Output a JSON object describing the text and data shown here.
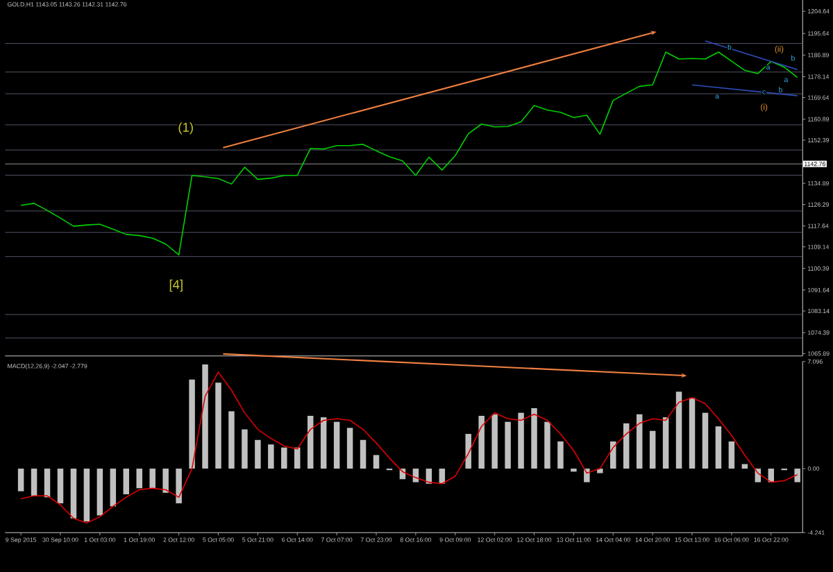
{
  "chart_data": [
    {
      "type": "line",
      "title": "GOLD,H1  1143.05 1143.26 1142.31 1142.76",
      "ylim": [
        1064.9,
        1209.2
      ],
      "categories": [
        null,
        null,
        null,
        null,
        null,
        null,
        null,
        null,
        null,
        null,
        null,
        null,
        null,
        null,
        null,
        null,
        null,
        null,
        null,
        null,
        null,
        null,
        null,
        null,
        null,
        null,
        null,
        null,
        null,
        null,
        null,
        null,
        null,
        null,
        null,
        null,
        null,
        null,
        null,
        null,
        null,
        null,
        null,
        null,
        null,
        null,
        null,
        null,
        null,
        null,
        null,
        null,
        null,
        null,
        null,
        null,
        null,
        null,
        null,
        null
      ],
      "yticks": [
        1204.64,
        1195.64,
        1186.89,
        1178.14,
        1169.64,
        1160.89,
        1152.39,
        1134.89,
        1126.29,
        1117.64,
        1109.14,
        1100.39,
        1091.64,
        1083.14,
        1074.39,
        1065.89
      ],
      "series": [
        {
          "color": "#00d000",
          "values": [
            1126.0,
            1126.8,
            1123.9,
            1120.8,
            1117.5,
            1118.0,
            1118.3,
            1116.3,
            1114.2,
            1113.7,
            1112.7,
            1110.3,
            1105.9,
            1138.1,
            1137.5,
            1136.8,
            1134.6,
            1141.4,
            1136.5,
            1137.0,
            1138.1,
            1138.1,
            1149.0,
            1148.8,
            1150.2,
            1150.2,
            1150.7,
            1148.1,
            1145.7,
            1144.0,
            1138.1,
            1145.5,
            1140.3,
            1146.1,
            1155.0,
            1158.9,
            1157.8,
            1157.9,
            1159.8,
            1166.4,
            1164.6,
            1163.7,
            1161.6,
            1162.5,
            1154.8,
            1168.5,
            1171.4,
            1174.2,
            1174.8,
            1188.1,
            1185.3,
            1185.5,
            1185.3,
            1188.1,
            1184.4,
            1180.7,
            1179.4,
            1184.3,
            1182.0,
            1177.8
          ]
        },
        {
          "color": "#3050c0",
          "values": [
            null,
            null,
            null,
            null,
            null,
            null,
            null,
            null,
            null,
            null,
            null,
            null,
            null,
            null,
            null,
            null,
            null,
            null,
            null,
            null,
            null,
            null,
            null,
            null,
            null,
            null,
            null,
            null,
            null,
            null,
            null,
            null,
            null,
            null,
            null,
            null,
            null,
            null,
            null,
            null,
            null,
            null,
            null,
            null,
            null,
            null,
            null,
            null,
            null,
            null,
            null,
            null,
            1192.6,
            null,
            null,
            null,
            null,
            null,
            null,
            1181.0
          ]
        },
        {
          "color": "#3050c0",
          "values": [
            null,
            null,
            null,
            null,
            null,
            null,
            null,
            null,
            null,
            null,
            null,
            null,
            null,
            null,
            null,
            null,
            null,
            null,
            null,
            null,
            null,
            null,
            null,
            null,
            null,
            null,
            null,
            null,
            null,
            null,
            null,
            null,
            null,
            null,
            null,
            null,
            null,
            null,
            null,
            null,
            null,
            null,
            null,
            null,
            null,
            null,
            null,
            null,
            null,
            null,
            null,
            1174.8,
            null,
            null,
            null,
            null,
            null,
            null,
            null,
            1170.4
          ]
        }
      ],
      "ref_lines": [
        {
          "axis": "y",
          "value": 1191.6,
          "color": "#5a5a6e"
        },
        {
          "axis": "y",
          "value": 1180.0,
          "color": "#5a5a6e"
        },
        {
          "axis": "y",
          "value": 1171.2,
          "color": "#5a5a6e"
        },
        {
          "axis": "y",
          "value": 1158.6,
          "color": "#5a5a6e"
        },
        {
          "axis": "y",
          "value": 1148.4,
          "color": "#5a5a6e"
        },
        {
          "axis": "y",
          "value": 1138.2,
          "color": "#5a5a6e"
        },
        {
          "axis": "y",
          "value": 1123.7,
          "color": "#5a5a6e"
        },
        {
          "axis": "y",
          "value": 1115.0,
          "color": "#5a5a6e"
        },
        {
          "axis": "y",
          "value": 1105.2,
          "color": "#5a5a6e"
        },
        {
          "axis": "y",
          "value": 1081.7,
          "color": "#5a5a6e"
        },
        {
          "axis": "y",
          "value": 1072.2,
          "color": "#5a5a6e"
        },
        {
          "axis": "y",
          "value": 1142.76,
          "label": "1142.76",
          "color": "#a0a0a0"
        }
      ],
      "annotations": [
        "(1)",
        "[4]",
        "(ii)",
        "(i)",
        "b",
        "a",
        "c",
        "a",
        "b",
        "a",
        "b"
      ]
    },
    {
      "type": "bar",
      "title": "MACD(12,26,9) -2.047 -2.779",
      "ylim": [
        -4.241,
        7.096
      ],
      "yticks": [
        7.096,
        {
          "value": 0,
          "label": "0.00"
        },
        -4.241
      ],
      "categories": [
        "9 Sep 2015",
        null,
        null,
        "30 Sep 10:00",
        null,
        null,
        "1 Oct 03:00",
        null,
        null,
        "1 Oct 19:00",
        null,
        null,
        "2 Oct 12:00",
        null,
        null,
        "5 Oct 05:00",
        null,
        null,
        "5 Oct 21:00",
        null,
        null,
        "6 Oct 14:00",
        null,
        null,
        "7 Oct 07:00",
        null,
        null,
        "7 Oct 23:00",
        null,
        null,
        "8 Oct 16:00",
        null,
        null,
        "9 Oct 09:00",
        null,
        null,
        "12 Oct 02:00",
        null,
        null,
        "12 Oct 18:00",
        null,
        null,
        "13 Oct 11:00",
        null,
        null,
        "14 Oct 04:00",
        null,
        null,
        "14 Oct 20:00",
        null,
        null,
        "15 Oct 13:00",
        null,
        null,
        "16 Oct 06:00",
        null,
        null,
        "16 Oct 22:00",
        null,
        null
      ],
      "series": [
        {
          "color": "#c0c0c0",
          "values": [
            -1.5,
            -1.8,
            -1.9,
            -2.3,
            -3.3,
            -3.5,
            -3.1,
            -2.5,
            -1.7,
            -1.3,
            -1.3,
            -1.6,
            -2.3,
            5.9,
            6.9,
            5.7,
            3.8,
            2.6,
            1.9,
            1.6,
            1.4,
            1.4,
            3.5,
            3.4,
            3.1,
            2.7,
            1.9,
            0.9,
            -0.1,
            -0.7,
            -0.9,
            -1.0,
            -1.0,
            0.0,
            2.3,
            3.5,
            3.6,
            3.1,
            3.7,
            4.0,
            3.1,
            1.8,
            -0.2,
            -0.9,
            -0.3,
            1.8,
            3.0,
            3.6,
            2.5,
            3.4,
            5.1,
            4.7,
            3.7,
            2.8,
            1.8,
            0.3,
            -0.9,
            -0.9,
            -0.1,
            -0.9
          ]
        },
        {
          "type": "line",
          "color": "#e00000",
          "values": [
            -2.0,
            -1.8,
            -1.8,
            -2.4,
            -3.3,
            -3.6,
            -3.2,
            -2.5,
            -1.9,
            -1.4,
            -1.3,
            -1.4,
            -1.9,
            0.0,
            4.8,
            6.4,
            5.2,
            3.7,
            2.6,
            2.0,
            1.5,
            1.3,
            2.6,
            3.2,
            3.3,
            3.2,
            2.6,
            1.7,
            0.7,
            -0.2,
            -0.6,
            -0.9,
            -1.0,
            -0.5,
            1.0,
            2.8,
            3.7,
            3.3,
            3.2,
            3.6,
            3.2,
            2.3,
            1.2,
            -0.3,
            0.0,
            1.4,
            2.3,
            3.0,
            3.3,
            3.2,
            4.4,
            4.7,
            4.3,
            3.3,
            2.2,
            0.9,
            -0.3,
            -0.9,
            -0.8,
            -0.4
          ]
        }
      ]
    }
  ]
}
